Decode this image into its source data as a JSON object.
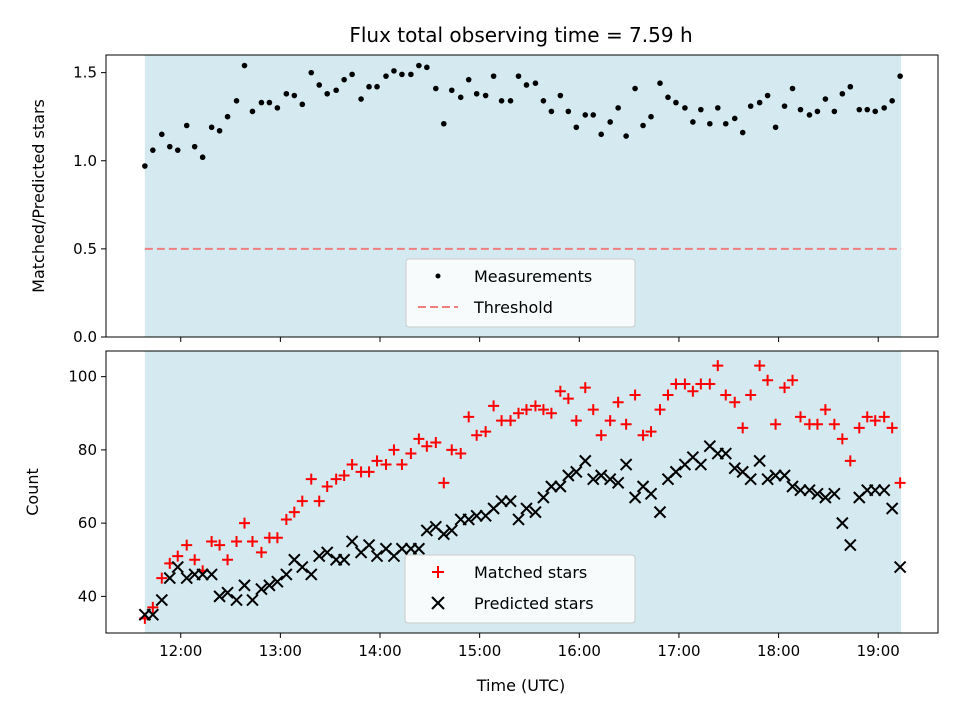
{
  "chart_data": [
    {
      "type": "scatter",
      "title": "Flux total observing time = 7.59 h",
      "ylabel": "Matched/Predicted stars",
      "xlabel": "",
      "x_unit": "hours UTC",
      "xlim": [
        11.25,
        19.6
      ],
      "ylim": [
        0.0,
        1.6
      ],
      "yticks": [
        0.0,
        0.5,
        1.0,
        1.5
      ],
      "ytick_labels": [
        "0.0",
        "0.5",
        "1.0",
        "1.5"
      ],
      "observing_window": [
        11.64,
        19.23
      ],
      "shade_color": "#d4eaf0",
      "threshold": 0.5,
      "threshold_color": "#f08080",
      "legend": {
        "placement": "lower center",
        "entries": [
          "Measurements",
          "Threshold"
        ]
      },
      "series": [
        {
          "name": "Measurements",
          "marker": "dot",
          "color": "#000000",
          "x": [
            11.64,
            11.72,
            11.81,
            11.89,
            11.97,
            12.06,
            12.14,
            12.22,
            12.31,
            12.39,
            12.47,
            12.56,
            12.64,
            12.72,
            12.81,
            12.89,
            12.97,
            13.06,
            13.14,
            13.22,
            13.31,
            13.39,
            13.47,
            13.56,
            13.64,
            13.72,
            13.81,
            13.89,
            13.97,
            14.06,
            14.14,
            14.22,
            14.31,
            14.39,
            14.47,
            14.56,
            14.64,
            14.72,
            14.81,
            14.89,
            14.97,
            15.06,
            15.14,
            15.22,
            15.31,
            15.39,
            15.47,
            15.56,
            15.64,
            15.72,
            15.81,
            15.89,
            15.97,
            16.06,
            16.14,
            16.22,
            16.31,
            16.39,
            16.47,
            16.56,
            16.64,
            16.72,
            16.81,
            16.89,
            16.97,
            17.06,
            17.14,
            17.22,
            17.31,
            17.39,
            17.47,
            17.56,
            17.64,
            17.72,
            17.81,
            17.89,
            17.97,
            18.06,
            18.14,
            18.22,
            18.31,
            18.39,
            18.47,
            18.56,
            18.64,
            18.72,
            18.81,
            18.89,
            18.97,
            19.06,
            19.14,
            19.22
          ],
          "y": [
            0.97,
            1.06,
            1.15,
            1.08,
            1.06,
            1.2,
            1.08,
            1.02,
            1.19,
            1.17,
            1.25,
            1.34,
            1.54,
            1.28,
            1.33,
            1.33,
            1.3,
            1.38,
            1.37,
            1.32,
            1.5,
            1.43,
            1.38,
            1.4,
            1.46,
            1.49,
            1.35,
            1.42,
            1.42,
            1.48,
            1.51,
            1.49,
            1.49,
            1.54,
            1.53,
            1.41,
            1.21,
            1.4,
            1.36,
            1.46,
            1.38,
            1.37,
            1.48,
            1.34,
            1.34,
            1.48,
            1.43,
            1.44,
            1.34,
            1.28,
            1.37,
            1.28,
            1.19,
            1.26,
            1.26,
            1.15,
            1.22,
            1.3,
            1.14,
            1.41,
            1.2,
            1.25,
            1.44,
            1.36,
            1.33,
            1.3,
            1.22,
            1.29,
            1.21,
            1.3,
            1.21,
            1.24,
            1.16,
            1.31,
            1.33,
            1.37,
            1.19,
            1.31,
            1.41,
            1.29,
            1.26,
            1.28,
            1.35,
            1.28,
            1.38,
            1.42,
            1.29,
            1.29,
            1.28,
            1.3,
            1.34,
            1.48
          ]
        }
      ]
    },
    {
      "type": "scatter",
      "title": "",
      "ylabel": "Count",
      "xlabel": "Time (UTC)",
      "x_unit": "hours UTC",
      "xlim": [
        11.25,
        19.6
      ],
      "ylim": [
        30,
        107
      ],
      "yticks": [
        40,
        60,
        80,
        100
      ],
      "ytick_labels": [
        "40",
        "60",
        "80",
        "100"
      ],
      "xticks": [
        12,
        13,
        14,
        15,
        16,
        17,
        18,
        19
      ],
      "xtick_labels": [
        "12:00",
        "13:00",
        "14:00",
        "15:00",
        "16:00",
        "17:00",
        "18:00",
        "19:00"
      ],
      "observing_window": [
        11.64,
        19.23
      ],
      "shade_color": "#d4eaf0",
      "legend": {
        "placement": "lower center",
        "entries": [
          "Matched stars",
          "Predicted stars"
        ]
      },
      "series": [
        {
          "name": "Matched stars",
          "marker": "plus",
          "color": "#ff0000",
          "x": [
            11.64,
            11.72,
            11.81,
            11.89,
            11.97,
            12.06,
            12.14,
            12.22,
            12.31,
            12.39,
            12.47,
            12.56,
            12.64,
            12.72,
            12.81,
            12.89,
            12.97,
            13.06,
            13.14,
            13.22,
            13.31,
            13.39,
            13.47,
            13.56,
            13.64,
            13.72,
            13.81,
            13.89,
            13.97,
            14.06,
            14.14,
            14.22,
            14.31,
            14.39,
            14.47,
            14.56,
            14.64,
            14.72,
            14.81,
            14.89,
            14.97,
            15.06,
            15.14,
            15.22,
            15.31,
            15.39,
            15.47,
            15.56,
            15.64,
            15.72,
            15.81,
            15.89,
            15.97,
            16.06,
            16.14,
            16.22,
            16.31,
            16.39,
            16.47,
            16.56,
            16.64,
            16.72,
            16.81,
            16.89,
            16.97,
            17.06,
            17.14,
            17.22,
            17.31,
            17.39,
            17.47,
            17.56,
            17.64,
            17.72,
            17.81,
            17.89,
            17.97,
            18.06,
            18.14,
            18.22,
            18.31,
            18.39,
            18.47,
            18.56,
            18.64,
            18.72,
            18.81,
            18.89,
            18.97,
            19.06,
            19.14,
            19.22
          ],
          "y": [
            34,
            37,
            45,
            49,
            51,
            54,
            50,
            47,
            55,
            54,
            50,
            55,
            60,
            55,
            52,
            56,
            56,
            61,
            63,
            66,
            72,
            66,
            70,
            72,
            73,
            76,
            74,
            74,
            77,
            76,
            80,
            76,
            79,
            83,
            81,
            82,
            71,
            80,
            79,
            89,
            84,
            85,
            92,
            88,
            88,
            90,
            91,
            92,
            91,
            90,
            96,
            94,
            88,
            97,
            91,
            84,
            88,
            93,
            87,
            95,
            84,
            85,
            91,
            95,
            98,
            98,
            96,
            98,
            98,
            103,
            95,
            93,
            86,
            95,
            103,
            99,
            87,
            97,
            99,
            89,
            87,
            87,
            91,
            87,
            83,
            77,
            86,
            89,
            88,
            89,
            86,
            71
          ]
        },
        {
          "name": "Predicted stars",
          "marker": "x",
          "color": "#000000",
          "x": [
            11.64,
            11.72,
            11.81,
            11.89,
            11.97,
            12.06,
            12.14,
            12.22,
            12.31,
            12.39,
            12.47,
            12.56,
            12.64,
            12.72,
            12.81,
            12.89,
            12.97,
            13.06,
            13.14,
            13.22,
            13.31,
            13.39,
            13.47,
            13.56,
            13.64,
            13.72,
            13.81,
            13.89,
            13.97,
            14.06,
            14.14,
            14.22,
            14.31,
            14.39,
            14.47,
            14.56,
            14.64,
            14.72,
            14.81,
            14.89,
            14.97,
            15.06,
            15.14,
            15.22,
            15.31,
            15.39,
            15.47,
            15.56,
            15.64,
            15.72,
            15.81,
            15.89,
            15.97,
            16.06,
            16.14,
            16.22,
            16.31,
            16.39,
            16.47,
            16.56,
            16.64,
            16.72,
            16.81,
            16.89,
            16.97,
            17.06,
            17.14,
            17.22,
            17.31,
            17.39,
            17.47,
            17.56,
            17.64,
            17.72,
            17.81,
            17.89,
            17.97,
            18.06,
            18.14,
            18.22,
            18.31,
            18.39,
            18.47,
            18.56,
            18.64,
            18.72,
            18.81,
            18.89,
            18.97,
            19.06,
            19.14,
            19.22
          ],
          "y": [
            35,
            35,
            39,
            45,
            48,
            45,
            46,
            46,
            46,
            40,
            41,
            39,
            43,
            39,
            42,
            43,
            44,
            46,
            50,
            48,
            46,
            51,
            52,
            50,
            50,
            55,
            52,
            54,
            51,
            53,
            51,
            53,
            53,
            53,
            58,
            59,
            57,
            58,
            61,
            61,
            62,
            62,
            64,
            66,
            66,
            61,
            64,
            63,
            67,
            70,
            70,
            73,
            74,
            77,
            72,
            73,
            72,
            71,
            76,
            67,
            70,
            68,
            63,
            72,
            74,
            76,
            78,
            76,
            81,
            79,
            79,
            75,
            74,
            72,
            77,
            72,
            73,
            73,
            70,
            69,
            69,
            68,
            67,
            68,
            60,
            54,
            67,
            69,
            69,
            69,
            64,
            48
          ]
        }
      ]
    }
  ]
}
